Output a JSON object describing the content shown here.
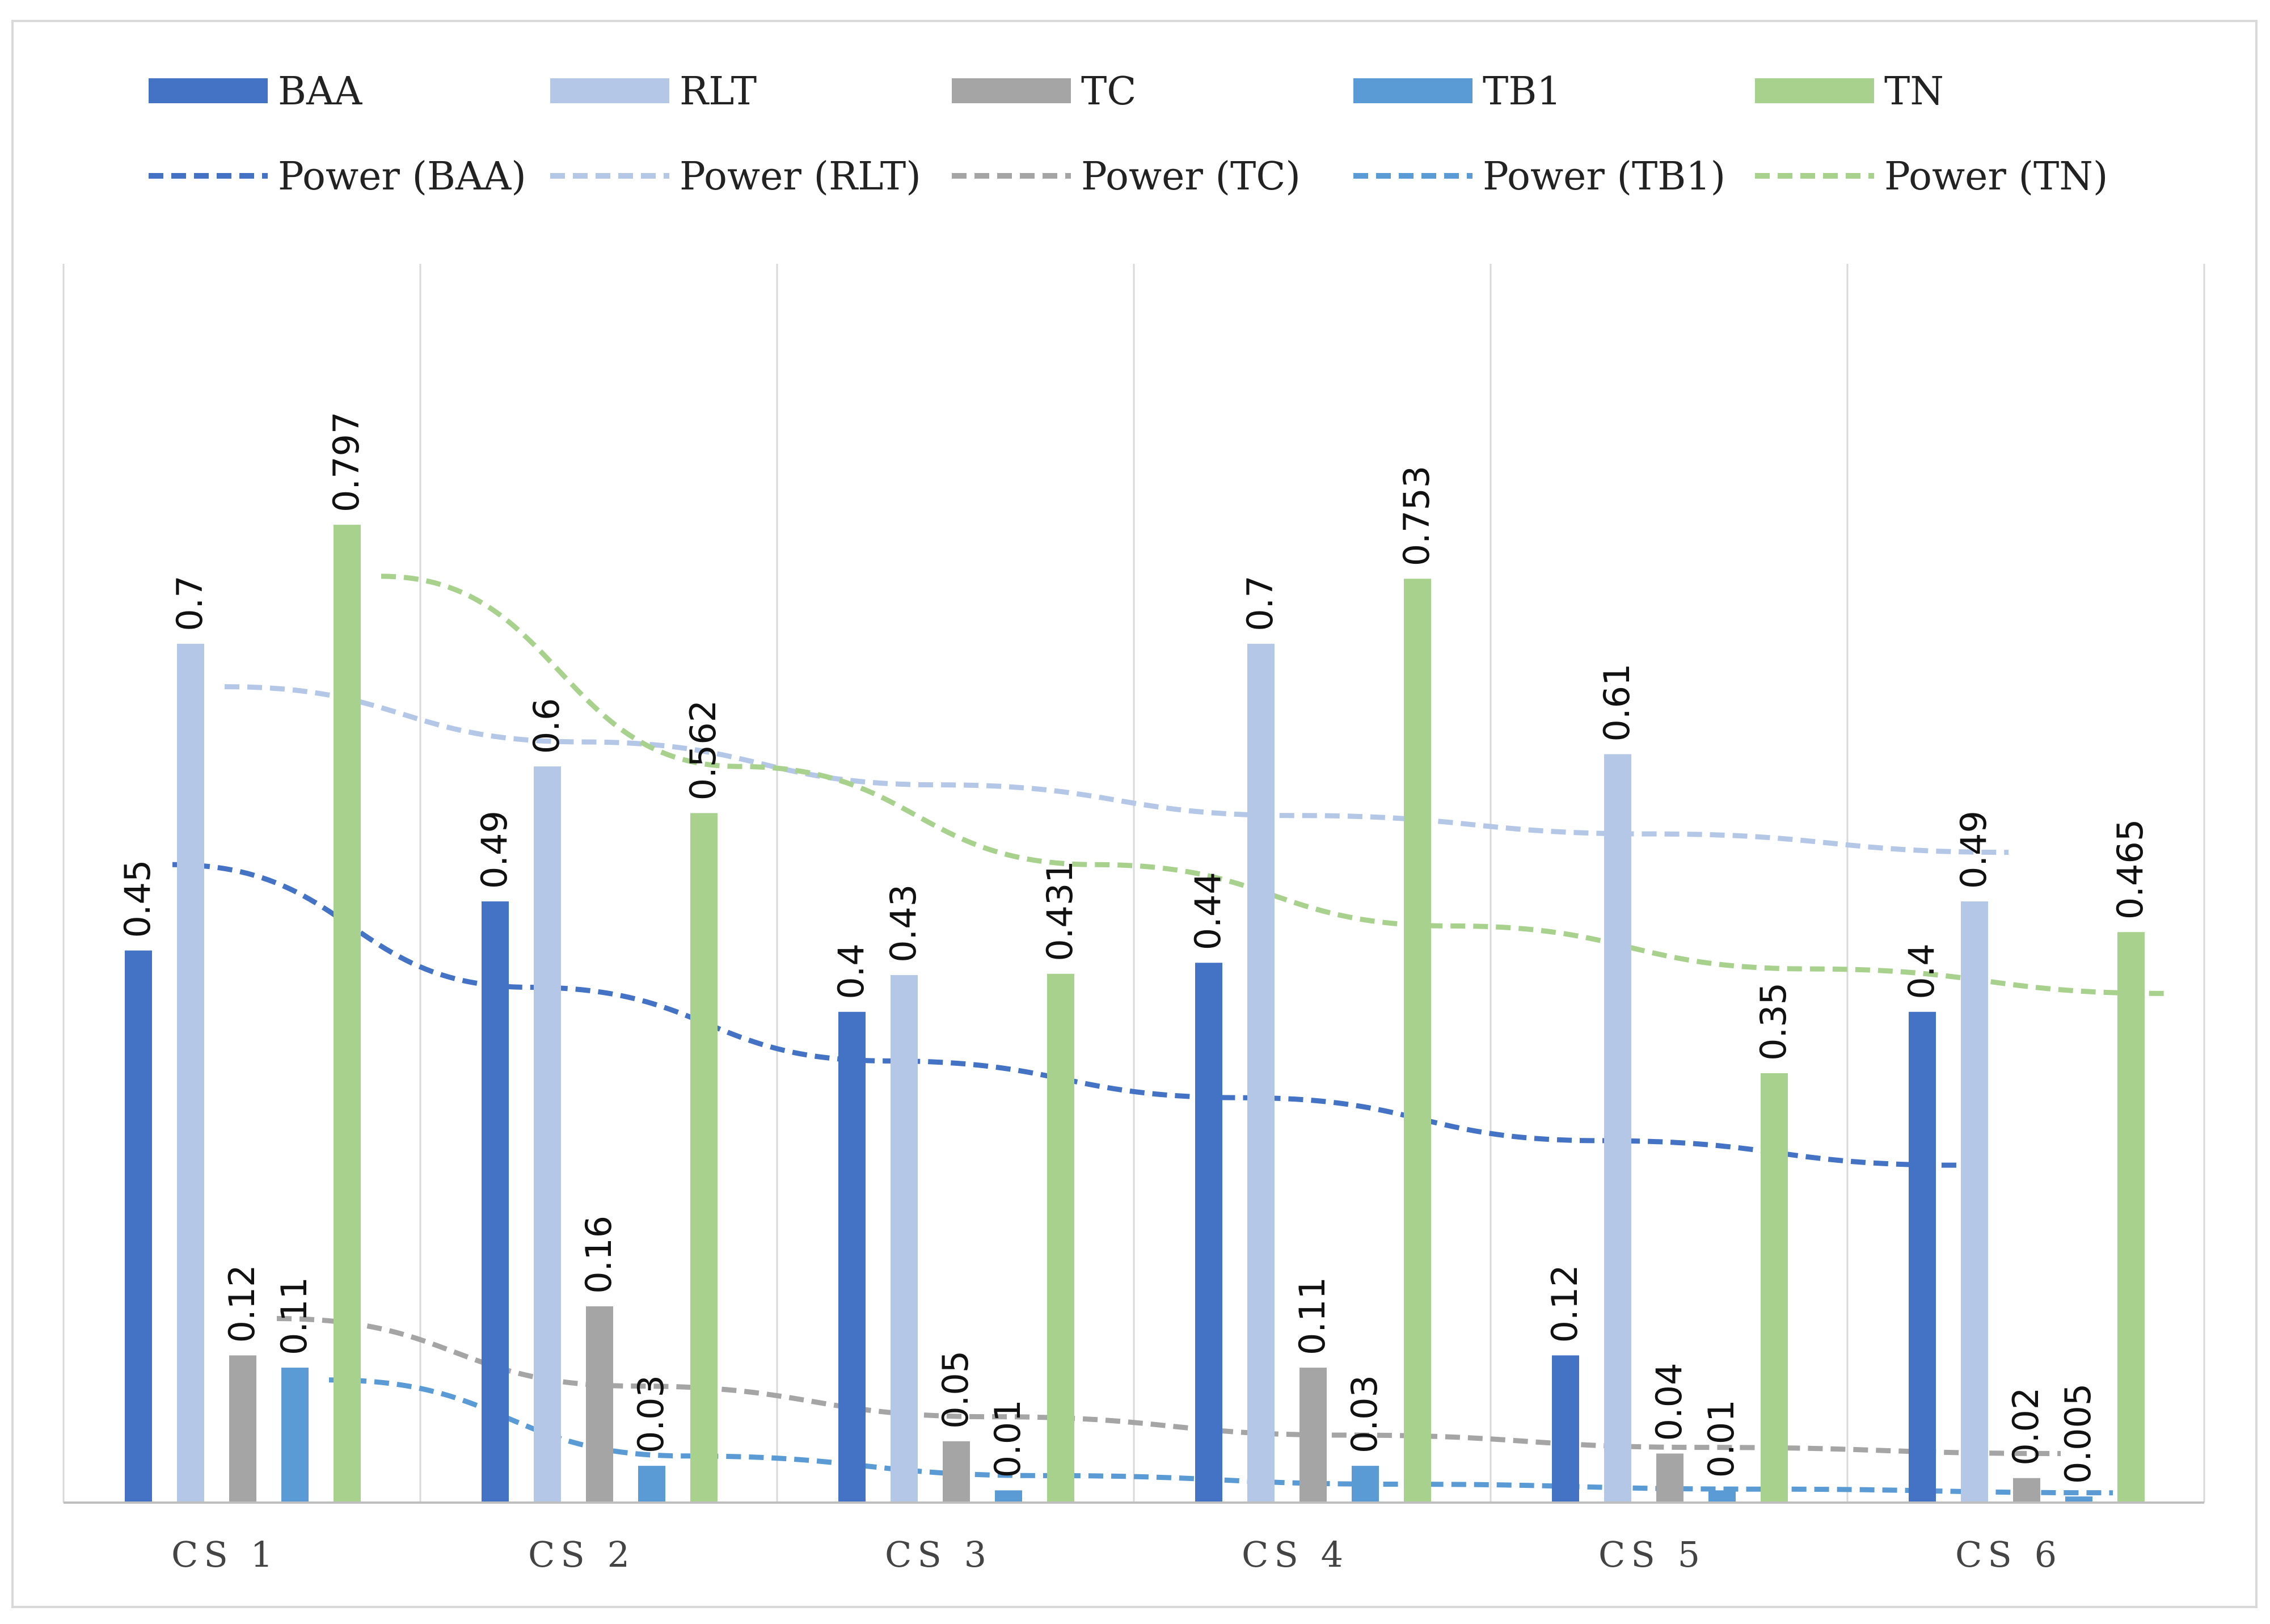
{
  "chart_data": {
    "type": "bar",
    "title": "",
    "xlabel": "",
    "ylabel": "",
    "categories": [
      "CS 1",
      "CS 2",
      "CS 3",
      "CS 4",
      "CS 5",
      "CS 6"
    ],
    "ylim": [
      0,
      0.9
    ],
    "grid": "vertical",
    "legend_position": "top",
    "series": [
      {
        "name": "BAA",
        "color": "#4472C4",
        "values": [
          0.45,
          0.49,
          0.4,
          0.44,
          0.12,
          0.4
        ],
        "labels": [
          "0.45",
          "0.49",
          "0.4",
          "0.44",
          "0.12",
          "0.4"
        ]
      },
      {
        "name": "RLT",
        "color": "#B4C7E7",
        "values": [
          0.7,
          0.6,
          0.43,
          0.7,
          0.61,
          0.49
        ],
        "labels": [
          "0.7",
          "0.6",
          "0.43",
          "0.7",
          "0.61",
          "0.49"
        ]
      },
      {
        "name": "TC",
        "color": "#A5A5A5",
        "values": [
          0.12,
          0.16,
          0.05,
          0.11,
          0.04,
          0.02
        ],
        "labels": [
          "0.12",
          "0.16",
          "0.05",
          "0.11",
          "0.04",
          "0.02"
        ]
      },
      {
        "name": "TB1",
        "color": "#5B9BD5",
        "values": [
          0.11,
          0.03,
          0.01,
          0.03,
          0.01,
          0.005
        ],
        "labels": [
          "0.11",
          "0.03",
          "0.01",
          "0.03",
          "0.01",
          "0.005"
        ]
      },
      {
        "name": "TN",
        "color": "#A9D18E",
        "values": [
          0.797,
          0.562,
          0.431,
          0.753,
          0.35,
          0.465
        ],
        "labels": [
          "0.797",
          "0.562",
          "0.431",
          "0.753",
          "0.35",
          "0.465"
        ]
      }
    ],
    "trendlines": [
      {
        "name": "Power (BAA)",
        "series": "BAA",
        "color": "#4472C4",
        "style": "dashed",
        "values": [
          0.52,
          0.42,
          0.36,
          0.33,
          0.295,
          0.275
        ]
      },
      {
        "name": "Power (RLT)",
        "series": "RLT",
        "color": "#B4C7E7",
        "style": "dashed",
        "values": [
          0.665,
          0.62,
          0.585,
          0.56,
          0.545,
          0.53
        ]
      },
      {
        "name": "Power (TC)",
        "series": "TC",
        "color": "#A5A5A5",
        "style": "dashed",
        "values": [
          0.15,
          0.095,
          0.07,
          0.055,
          0.045,
          0.04
        ]
      },
      {
        "name": "Power (TB1)",
        "series": "TB1",
        "color": "#5B9BD5",
        "style": "dashed",
        "values": [
          0.1,
          0.038,
          0.022,
          0.015,
          0.011,
          0.008
        ]
      },
      {
        "name": "Power (TN)",
        "series": "TN",
        "color": "#A9D18E",
        "style": "dashed",
        "values": [
          0.755,
          0.6,
          0.52,
          0.47,
          0.435,
          0.415
        ]
      }
    ],
    "legend": [
      {
        "name": "BAA",
        "kind": "bar",
        "color": "#4472C4"
      },
      {
        "name": "RLT",
        "kind": "bar",
        "color": "#B4C7E7"
      },
      {
        "name": "TC",
        "kind": "bar",
        "color": "#A5A5A5"
      },
      {
        "name": "TB1",
        "kind": "bar",
        "color": "#5B9BD5"
      },
      {
        "name": "TN",
        "kind": "bar",
        "color": "#A9D18E"
      },
      {
        "name": "Power (BAA)",
        "kind": "line",
        "color": "#4472C4"
      },
      {
        "name": "Power (RLT)",
        "kind": "line",
        "color": "#B4C7E7"
      },
      {
        "name": "Power (TC)",
        "kind": "line",
        "color": "#A5A5A5"
      },
      {
        "name": "Power (TB1)",
        "kind": "line",
        "color": "#5B9BD5"
      },
      {
        "name": "Power (TN)",
        "kind": "line",
        "color": "#A9D18E"
      }
    ]
  }
}
